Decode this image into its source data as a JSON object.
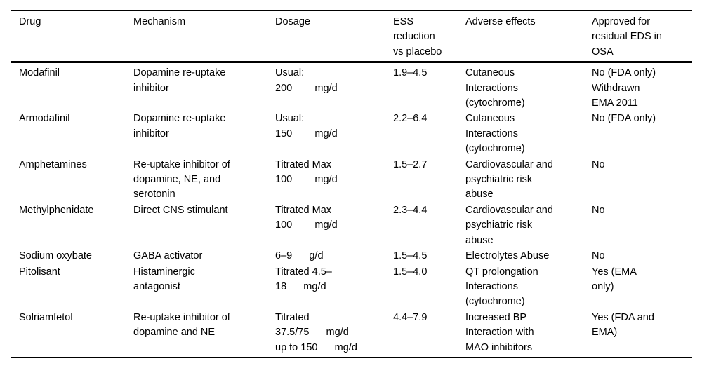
{
  "style": {
    "text_color": "#000000",
    "rule_color": "#000000",
    "background_color": "#ffffff"
  },
  "table": {
    "columns": [
      "Drug",
      "Mechanism",
      "Dosage",
      "ESS\nreduction\nvs placebo",
      "Adverse effects",
      "Approved for\nresidual EDS in\nOSA"
    ],
    "rows": [
      {
        "drug": "Modafinil",
        "mechanism": "Dopamine re-uptake\ninhibitor",
        "dosage": "Usual:\n200        mg/d",
        "ess_reduction": "1.9–4.5",
        "adverse_effects": "Cutaneous\nInteractions\n(cytochrome)",
        "approved": "No (FDA only)\nWithdrawn\nEMA 2011"
      },
      {
        "drug": "Armodafinil",
        "mechanism": "Dopamine re-uptake\ninhibitor",
        "dosage": "Usual:\n150        mg/d",
        "ess_reduction": "2.2–6.4",
        "adverse_effects": "Cutaneous\nInteractions\n(cytochrome)",
        "approved": "No (FDA only)"
      },
      {
        "drug": "Amphetamines",
        "mechanism": "Re-uptake inhibitor of\ndopamine, NE, and\nserotonin",
        "dosage": "Titrated Max\n100        mg/d",
        "ess_reduction": "1.5–2.7",
        "adverse_effects": "Cardiovascular and\npsychiatric risk\nabuse",
        "approved": "No"
      },
      {
        "drug": "Methylphenidate",
        "mechanism": "Direct CNS stimulant",
        "dosage": "Titrated Max\n100        mg/d",
        "ess_reduction": "2.3–4.4",
        "adverse_effects": "Cardiovascular and\npsychiatric risk\nabuse",
        "approved": "No"
      },
      {
        "drug": "Sodium oxybate",
        "mechanism": "GABA activator",
        "dosage": "6–9      g/d",
        "ess_reduction": "1.5–4.5",
        "adverse_effects": "Electrolytes Abuse",
        "approved": "No"
      },
      {
        "drug": "Pitolisant",
        "mechanism": "Histaminergic\nantagonist",
        "dosage": "Titrated 4.5–\n18      mg/d",
        "ess_reduction": "1.5–4.0",
        "adverse_effects": "QT prolongation\nInteractions\n(cytochrome)",
        "approved": "Yes (EMA\nonly)"
      },
      {
        "drug": "Solriamfetol",
        "mechanism": "Re-uptake inhibitor of\ndopamine and NE",
        "dosage": "Titrated\n37.5/75      mg/d\nup to 150      mg/d",
        "ess_reduction": "4.4–7.9",
        "adverse_effects": "Increased BP\nInteraction with\nMAO inhibitors",
        "approved": "Yes (FDA and\nEMA)"
      }
    ]
  }
}
